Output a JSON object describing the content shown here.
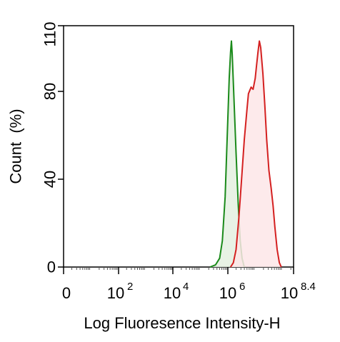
{
  "chart_data": {
    "type": "area",
    "xlabel": "Log Fluoresence Intensity-H",
    "ylabel": "Count  (%)",
    "x_scale": "log10",
    "xlim_exponent": [
      0,
      8.4
    ],
    "ylim": [
      0,
      110
    ],
    "x_ticks": [
      {
        "base": "0",
        "exp": ""
      },
      {
        "base": "10",
        "exp": "2"
      },
      {
        "base": "10",
        "exp": "4"
      },
      {
        "base": "10",
        "exp": "6"
      },
      {
        "base": "10",
        "exp": "8.4"
      }
    ],
    "y_ticks": [
      "0",
      "40",
      "80",
      "110"
    ],
    "grid": false,
    "legend": "none",
    "series": [
      {
        "color": "#1a8a1a",
        "fill": "#e4f0e0",
        "points": [
          [
            5.35,
            0
          ],
          [
            5.55,
            1
          ],
          [
            5.7,
            4
          ],
          [
            5.8,
            12
          ],
          [
            5.9,
            32
          ],
          [
            5.95,
            50
          ],
          [
            6.0,
            68
          ],
          [
            6.05,
            86
          ],
          [
            6.1,
            98
          ],
          [
            6.13,
            103
          ],
          [
            6.16,
            97
          ],
          [
            6.22,
            78
          ],
          [
            6.3,
            52
          ],
          [
            6.38,
            28
          ],
          [
            6.45,
            12
          ],
          [
            6.52,
            4
          ],
          [
            6.6,
            0
          ]
        ]
      },
      {
        "color": "#d42020",
        "fill": "#fde6e8",
        "points": [
          [
            6.1,
            0
          ],
          [
            6.2,
            2
          ],
          [
            6.3,
            8
          ],
          [
            6.4,
            22
          ],
          [
            6.5,
            40
          ],
          [
            6.6,
            58
          ],
          [
            6.7,
            72
          ],
          [
            6.75,
            79
          ],
          [
            6.85,
            82
          ],
          [
            6.92,
            81
          ],
          [
            7.0,
            86
          ],
          [
            7.05,
            92
          ],
          [
            7.1,
            98
          ],
          [
            7.15,
            103
          ],
          [
            7.2,
            100
          ],
          [
            7.28,
            88
          ],
          [
            7.35,
            74
          ],
          [
            7.42,
            58
          ],
          [
            7.5,
            44
          ],
          [
            7.58,
            36
          ],
          [
            7.65,
            28
          ],
          [
            7.72,
            18
          ],
          [
            7.8,
            8
          ],
          [
            7.88,
            2
          ],
          [
            7.95,
            0
          ]
        ]
      }
    ]
  }
}
